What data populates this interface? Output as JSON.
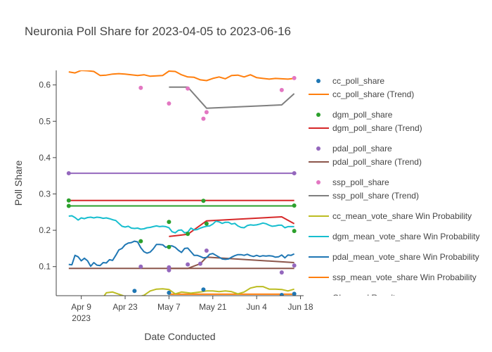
{
  "chart_data": {
    "type": "line",
    "title": "Neuronia Poll Share for 2023-04-05 to 2023-06-16",
    "xlabel": "Date Conducted",
    "ylabel": "Poll Share",
    "x_range": [
      "2023-04-01",
      "2023-06-19"
    ],
    "ylim": [
      0.02,
      0.64
    ],
    "x_ticks": [
      {
        "date": "2023-04-09",
        "label": "Apr 9",
        "sub": "2023"
      },
      {
        "date": "2023-04-23",
        "label": "Apr 23"
      },
      {
        "date": "2023-05-07",
        "label": "May 7"
      },
      {
        "date": "2023-05-21",
        "label": "May 21"
      },
      {
        "date": "2023-06-04",
        "label": "Jun 4"
      },
      {
        "date": "2023-06-18",
        "label": "Jun 18"
      }
    ],
    "y_ticks": [
      {
        "value": 0.1,
        "label": "0.1"
      },
      {
        "value": 0.2,
        "label": "0.2"
      },
      {
        "value": 0.3,
        "label": "0.3"
      },
      {
        "value": 0.4,
        "label": "0.4"
      },
      {
        "value": 0.5,
        "label": "0.5"
      },
      {
        "value": 0.6,
        "label": "0.6"
      }
    ],
    "grid": false,
    "legend_position": "right",
    "series": [
      {
        "name": "cc_poll_share",
        "kind": "markers",
        "color": "#1f77b4",
        "x": [
          "2023-04-26",
          "2023-05-07",
          "2023-05-18",
          "2023-06-12",
          "2023-06-16"
        ],
        "y": [
          0.033,
          0.028,
          0.037,
          0.022,
          0.025
        ]
      },
      {
        "name": "cc_poll_share (Trend)",
        "kind": "line",
        "color": "#ff7f0e",
        "x": [
          "2023-04-05",
          "2023-04-07",
          "2023-04-09",
          "2023-04-11",
          "2023-04-13",
          "2023-04-15",
          "2023-04-17",
          "2023-04-19",
          "2023-04-21",
          "2023-04-23",
          "2023-04-25",
          "2023-04-27",
          "2023-04-29",
          "2023-05-01",
          "2023-05-03",
          "2023-05-05",
          "2023-05-07",
          "2023-05-09",
          "2023-05-11",
          "2023-05-13",
          "2023-05-15",
          "2023-05-17",
          "2023-05-19",
          "2023-05-21",
          "2023-05-23",
          "2023-05-25",
          "2023-05-27",
          "2023-05-29",
          "2023-05-31",
          "2023-06-02",
          "2023-06-04",
          "2023-06-06",
          "2023-06-08",
          "2023-06-10",
          "2023-06-12",
          "2023-06-14",
          "2023-06-16"
        ],
        "y": [
          0.636,
          0.633,
          0.64,
          0.639,
          0.637,
          0.626,
          0.627,
          0.63,
          0.631,
          0.63,
          0.628,
          0.626,
          0.628,
          0.624,
          0.625,
          0.626,
          0.638,
          0.637,
          0.628,
          0.622,
          0.621,
          0.614,
          0.612,
          0.618,
          0.622,
          0.617,
          0.626,
          0.627,
          0.622,
          0.628,
          0.62,
          0.618,
          0.616,
          0.618,
          0.617,
          0.616,
          0.618
        ]
      },
      {
        "name": "dgm_poll_share",
        "kind": "markers",
        "color": "#2ca02c",
        "x": [
          "2023-04-05",
          "2023-04-05",
          "2023-04-28",
          "2023-05-07",
          "2023-05-07",
          "2023-05-13",
          "2023-05-18",
          "2023-05-19",
          "2023-06-16",
          "2023-06-16"
        ],
        "y": [
          0.282,
          0.267,
          0.17,
          0.223,
          0.154,
          0.19,
          0.281,
          0.218,
          0.198,
          0.268
        ]
      },
      {
        "name": "dgm_poll_share (Trend)",
        "kind": "line",
        "color": "#d62728",
        "x": [
          "2023-05-07",
          "2023-05-13",
          "2023-05-19",
          "2023-06-12",
          "2023-06-16"
        ],
        "y": [
          0.183,
          0.189,
          0.226,
          0.237,
          0.218
        ]
      },
      {
        "name": "pdal_poll_share",
        "kind": "markers",
        "color": "#9467bd",
        "x": [
          "2023-04-05",
          "2023-04-28",
          "2023-05-07",
          "2023-05-07",
          "2023-05-13",
          "2023-05-17",
          "2023-05-19",
          "2023-06-12",
          "2023-06-16",
          "2023-06-16"
        ],
        "y": [
          0.357,
          0.1,
          0.098,
          0.09,
          0.106,
          0.108,
          0.144,
          0.084,
          0.103,
          0.357
        ]
      },
      {
        "name": "pdal_poll_share (Trend)",
        "kind": "line",
        "color": "#8c564b",
        "x": [
          "2023-05-07",
          "2023-05-13",
          "2023-05-17",
          "2023-05-19",
          "2023-06-16"
        ],
        "y": [
          0.095,
          0.095,
          0.108,
          0.126,
          0.111
        ]
      },
      {
        "name": "ssp_poll_share",
        "kind": "markers",
        "color": "#e377c2",
        "x": [
          "2023-04-28",
          "2023-05-07",
          "2023-05-13",
          "2023-05-18",
          "2023-05-19",
          "2023-06-12",
          "2023-06-16"
        ],
        "y": [
          0.592,
          0.549,
          0.59,
          0.507,
          0.525,
          0.586,
          0.619
        ]
      },
      {
        "name": "ssp_poll_share (Trend)",
        "kind": "line",
        "color": "#7f7f7f",
        "x": [
          "2023-05-07",
          "2023-05-13",
          "2023-05-19",
          "2023-06-12",
          "2023-06-16"
        ],
        "y": [
          0.594,
          0.594,
          0.536,
          0.545,
          0.576
        ]
      },
      {
        "name": "cc_mean_vote_share Win Probability",
        "kind": "line",
        "color": "#bcbd22",
        "x": [
          "2023-04-05",
          "2023-04-10",
          "2023-04-15",
          "2023-04-17",
          "2023-04-19",
          "2023-04-21",
          "2023-04-25",
          "2023-04-29",
          "2023-05-01",
          "2023-05-03",
          "2023-05-05",
          "2023-05-07",
          "2023-05-09",
          "2023-05-11",
          "2023-05-14",
          "2023-05-17",
          "2023-05-19",
          "2023-05-21",
          "2023-05-23",
          "2023-05-25",
          "2023-05-27",
          "2023-05-29",
          "2023-05-31",
          "2023-06-02",
          "2023-06-04",
          "2023-06-06",
          "2023-06-08",
          "2023-06-10",
          "2023-06-12",
          "2023-06-14",
          "2023-06-16"
        ],
        "y": [
          0.0,
          0.002,
          0.004,
          0.028,
          0.03,
          0.024,
          0.012,
          0.021,
          0.033,
          0.038,
          0.039,
          0.037,
          0.025,
          0.03,
          0.027,
          0.03,
          0.033,
          0.033,
          0.031,
          0.033,
          0.031,
          0.025,
          0.03,
          0.041,
          0.045,
          0.045,
          0.038,
          0.038,
          0.037,
          0.033,
          0.038
        ]
      },
      {
        "name": "dgm_mean_vote_share Win Probability",
        "kind": "line",
        "color": "#17becf",
        "x": [
          "2023-04-05",
          "2023-04-06",
          "2023-04-07",
          "2023-04-08",
          "2023-04-09",
          "2023-04-10",
          "2023-04-11",
          "2023-04-12",
          "2023-04-13",
          "2023-04-14",
          "2023-04-15",
          "2023-04-16",
          "2023-04-17",
          "2023-04-18",
          "2023-04-19",
          "2023-04-20",
          "2023-04-21",
          "2023-04-22",
          "2023-04-23",
          "2023-04-24",
          "2023-04-25",
          "2023-04-26",
          "2023-04-27",
          "2023-04-28",
          "2023-04-29",
          "2023-04-30",
          "2023-05-01",
          "2023-05-02",
          "2023-05-03",
          "2023-05-04",
          "2023-05-05",
          "2023-05-06",
          "2023-05-07",
          "2023-05-08",
          "2023-05-09",
          "2023-05-10",
          "2023-05-11",
          "2023-05-12",
          "2023-05-13",
          "2023-05-14",
          "2023-05-15",
          "2023-05-16",
          "2023-05-17",
          "2023-05-18",
          "2023-05-19",
          "2023-05-20",
          "2023-05-21",
          "2023-05-22",
          "2023-05-23",
          "2023-05-24",
          "2023-05-25",
          "2023-05-26",
          "2023-05-27",
          "2023-05-28",
          "2023-05-29",
          "2023-05-30",
          "2023-05-31",
          "2023-06-01",
          "2023-06-02",
          "2023-06-03",
          "2023-06-04",
          "2023-06-05",
          "2023-06-06",
          "2023-06-07",
          "2023-06-08",
          "2023-06-09",
          "2023-06-10",
          "2023-06-11",
          "2023-06-12",
          "2023-06-13",
          "2023-06-14",
          "2023-06-15",
          "2023-06-16"
        ],
        "y": [
          0.239,
          0.24,
          0.235,
          0.228,
          0.234,
          0.232,
          0.235,
          0.236,
          0.234,
          0.236,
          0.235,
          0.233,
          0.234,
          0.232,
          0.229,
          0.227,
          0.219,
          0.211,
          0.209,
          0.211,
          0.206,
          0.205,
          0.206,
          0.203,
          0.204,
          0.207,
          0.208,
          0.21,
          0.212,
          0.21,
          0.211,
          0.21,
          0.207,
          0.196,
          0.193,
          0.2,
          0.201,
          0.193,
          0.195,
          0.206,
          0.201,
          0.202,
          0.206,
          0.209,
          0.211,
          0.212,
          0.217,
          0.225,
          0.223,
          0.219,
          0.222,
          0.222,
          0.217,
          0.219,
          0.212,
          0.208,
          0.207,
          0.213,
          0.215,
          0.214,
          0.215,
          0.217,
          0.22,
          0.218,
          0.214,
          0.211,
          0.212,
          0.214,
          0.214,
          0.207,
          0.21,
          0.21,
          0.21
        ]
      },
      {
        "name": "pdal_mean_vote_share Win Probability",
        "kind": "line",
        "color": "#1f77b4",
        "x": [
          "2023-04-05",
          "2023-04-06",
          "2023-04-07",
          "2023-04-08",
          "2023-04-09",
          "2023-04-10",
          "2023-04-11",
          "2023-04-12",
          "2023-04-13",
          "2023-04-14",
          "2023-04-15",
          "2023-04-16",
          "2023-04-17",
          "2023-04-18",
          "2023-04-19",
          "2023-04-20",
          "2023-04-21",
          "2023-04-22",
          "2023-04-23",
          "2023-04-24",
          "2023-04-25",
          "2023-04-26",
          "2023-04-27",
          "2023-04-28",
          "2023-04-29",
          "2023-04-30",
          "2023-05-01",
          "2023-05-02",
          "2023-05-03",
          "2023-05-04",
          "2023-05-05",
          "2023-05-06",
          "2023-05-07",
          "2023-05-08",
          "2023-05-09",
          "2023-05-10",
          "2023-05-11",
          "2023-05-12",
          "2023-05-13",
          "2023-05-14",
          "2023-05-15",
          "2023-05-16",
          "2023-05-17",
          "2023-05-18",
          "2023-05-19",
          "2023-05-20",
          "2023-05-21",
          "2023-05-22",
          "2023-05-23",
          "2023-05-24",
          "2023-05-25",
          "2023-05-26",
          "2023-05-27",
          "2023-05-28",
          "2023-05-29",
          "2023-05-30",
          "2023-05-31",
          "2023-06-01",
          "2023-06-02",
          "2023-06-03",
          "2023-06-04",
          "2023-06-05",
          "2023-06-06",
          "2023-06-07",
          "2023-06-08",
          "2023-06-09",
          "2023-06-10",
          "2023-06-11",
          "2023-06-12",
          "2023-06-13",
          "2023-06-14",
          "2023-06-15",
          "2023-06-16"
        ],
        "y": [
          0.106,
          0.105,
          0.131,
          0.127,
          0.116,
          0.123,
          0.116,
          0.101,
          0.111,
          0.104,
          0.103,
          0.111,
          0.11,
          0.119,
          0.117,
          0.131,
          0.146,
          0.15,
          0.16,
          0.165,
          0.166,
          0.17,
          0.168,
          0.152,
          0.141,
          0.137,
          0.14,
          0.149,
          0.161,
          0.161,
          0.16,
          0.153,
          0.157,
          0.157,
          0.153,
          0.145,
          0.139,
          0.15,
          0.151,
          0.141,
          0.131,
          0.131,
          0.128,
          0.124,
          0.125,
          0.134,
          0.136,
          0.131,
          0.126,
          0.121,
          0.12,
          0.121,
          0.126,
          0.13,
          0.133,
          0.133,
          0.131,
          0.134,
          0.13,
          0.128,
          0.131,
          0.128,
          0.13,
          0.129,
          0.13,
          0.129,
          0.126,
          0.127,
          0.132,
          0.124,
          0.132,
          0.131,
          0.135
        ]
      },
      {
        "name": "ssp_mean_vote_share Win Probability",
        "kind": "line",
        "color": "#ff7f0e",
        "x": [],
        "y": []
      },
      {
        "name": "Observed Result",
        "kind": "line",
        "color": "#9467bd",
        "x": [],
        "y": []
      }
    ],
    "reference_lines": [
      {
        "color": "#9467bd",
        "y": 0.357,
        "x": [
          "2023-04-05",
          "2023-06-16"
        ]
      },
      {
        "color": "#d62728",
        "y": 0.282,
        "x": [
          "2023-04-05",
          "2023-06-16"
        ]
      },
      {
        "color": "#2ca02c",
        "y": 0.267,
        "x": [
          "2023-04-05",
          "2023-06-16"
        ]
      },
      {
        "color": "#8c564b",
        "y": 0.095,
        "x": [
          "2023-04-05",
          "2023-06-16"
        ]
      },
      {
        "color": "#ff7f0e",
        "y": 0.024,
        "x": [
          "2023-05-07",
          "2023-06-16"
        ]
      }
    ]
  }
}
